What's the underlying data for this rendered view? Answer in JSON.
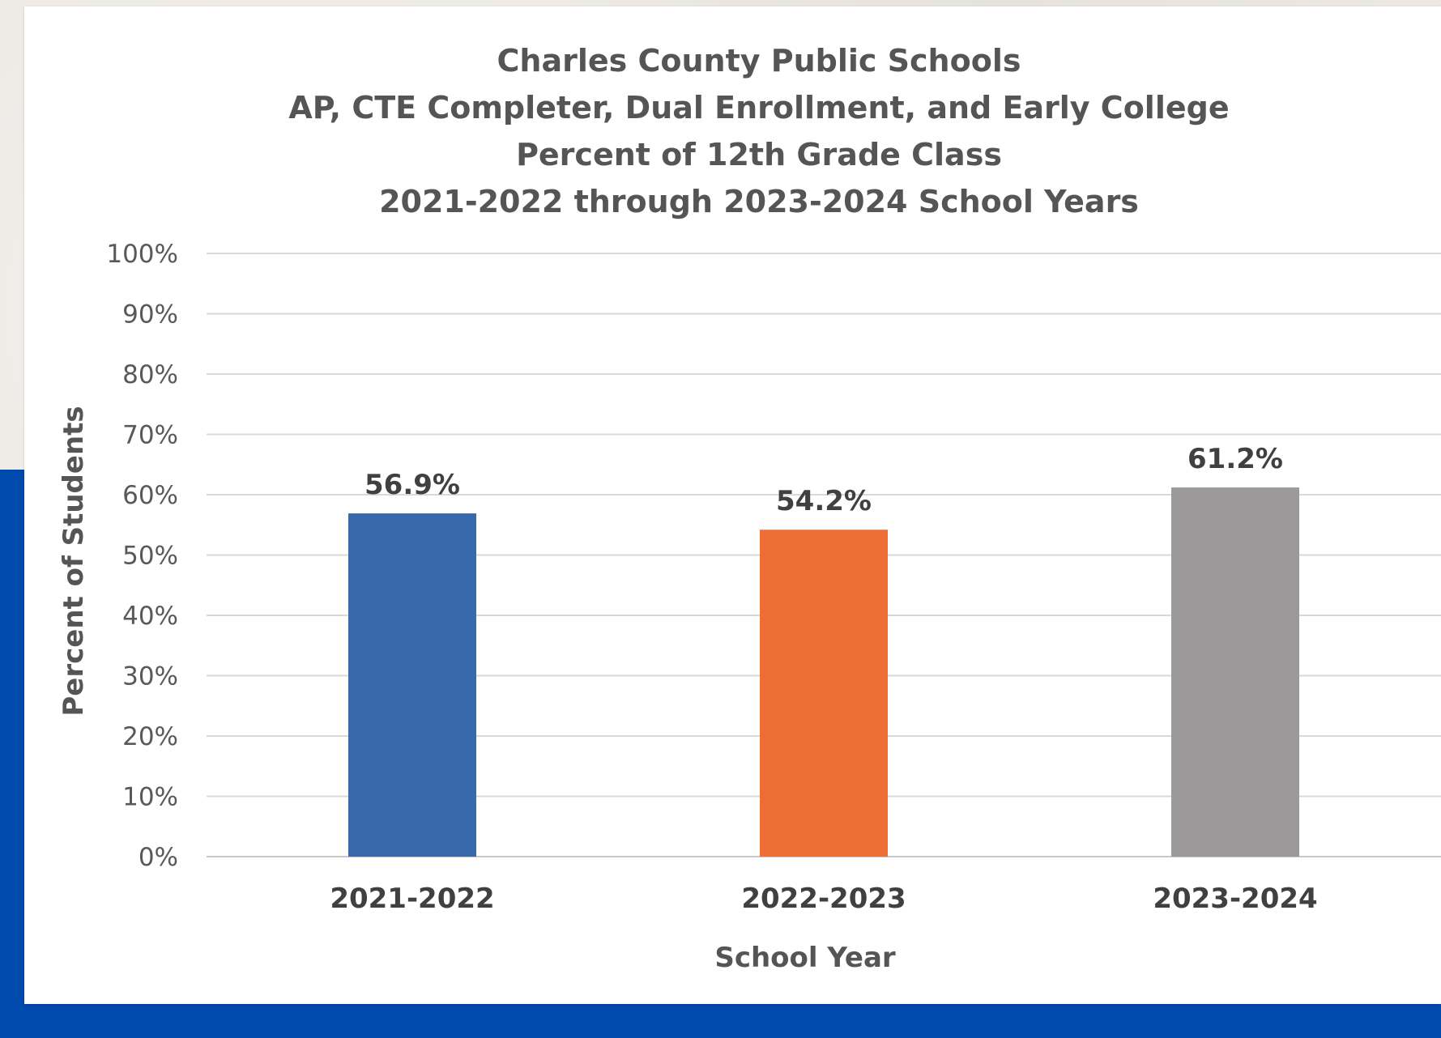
{
  "chart_data": {
    "type": "bar",
    "title_lines": [
      "Charles County Public Schools",
      "AP, CTE Completer, Dual Enrollment, and Early College",
      "Percent of 12th Grade Class",
      "2021-2022 through 2023-2024 School Years"
    ],
    "categories": [
      "2021-2022",
      "2022-2023",
      "2023-2024"
    ],
    "values": [
      56.9,
      54.2,
      61.2
    ],
    "data_labels": [
      "56.9%",
      "54.2%",
      "61.2%"
    ],
    "colors": [
      "#3769ab",
      "#ed6d34",
      "#9b999a"
    ],
    "xlabel": "School Year",
    "ylabel": "Percent of Students",
    "ylim": [
      0,
      100
    ],
    "yticks": [
      0,
      10,
      20,
      30,
      40,
      50,
      60,
      70,
      80,
      90,
      100
    ],
    "ytick_labels": [
      "0%",
      "10%",
      "20%",
      "30%",
      "40%",
      "50%",
      "60%",
      "70%",
      "80%",
      "90%",
      "100%"
    ],
    "grid": true,
    "legend": "none"
  },
  "background": {
    "accent_color": "#0049ad"
  }
}
